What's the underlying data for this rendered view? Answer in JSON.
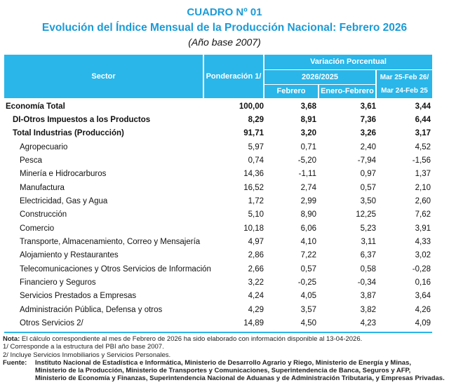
{
  "title": {
    "line1": "CUADRO Nº 01",
    "line2": "Evolución del Índice Mensual de la Producción Nacional: Febrero 2026",
    "line3": "(Año base 2007)"
  },
  "colors": {
    "header": "#2ab6e9",
    "title": "#1b9bd7"
  },
  "header": {
    "sector": "Sector",
    "ponderacion": "Ponderación 1/",
    "variacion": "Variación Porcentual",
    "periodo": "2026/2025",
    "anual_1": "Mar 25-Feb 26/",
    "anual_2": "Mar 24-Feb 25",
    "febrero": "Febrero",
    "enero_febrero": "Enero-Febrero"
  },
  "rows": [
    {
      "sector": "Economía Total",
      "pond": "100,00",
      "feb": "3,68",
      "enefeb": "3,61",
      "anual": "3,44"
    },
    {
      "sector": "DI-Otros Impuestos a los Productos",
      "pond": "8,29",
      "feb": "8,91",
      "enefeb": "7,36",
      "anual": "6,44"
    },
    {
      "sector": "Total  Industrias (Producción)",
      "pond": "91,71",
      "feb": "3,20",
      "enefeb": "3,26",
      "anual": "3,17"
    },
    {
      "sector": "Agropecuario",
      "pond": "5,97",
      "feb": "0,71",
      "enefeb": "2,40",
      "anual": "4,52"
    },
    {
      "sector": "Pesca",
      "pond": "0,74",
      "feb": "-5,20",
      "enefeb": "-7,94",
      "anual": "-1,56"
    },
    {
      "sector": "Minería e Hidrocarburos",
      "pond": "14,36",
      "feb": "-1,11",
      "enefeb": "0,97",
      "anual": "1,37"
    },
    {
      "sector": "Manufactura",
      "pond": "16,52",
      "feb": "2,74",
      "enefeb": "0,57",
      "anual": "2,10"
    },
    {
      "sector": "Electricidad, Gas y Agua",
      "pond": "1,72",
      "feb": "2,99",
      "enefeb": "3,50",
      "anual": "2,60"
    },
    {
      "sector": "Construcción",
      "pond": "5,10",
      "feb": "8,90",
      "enefeb": "12,25",
      "anual": "7,62"
    },
    {
      "sector": "Comercio",
      "pond": "10,18",
      "feb": "6,06",
      "enefeb": "5,23",
      "anual": "3,91"
    },
    {
      "sector": "Transporte, Almacenamiento, Correo y Mensajería",
      "pond": "4,97",
      "feb": "4,10",
      "enefeb": "3,11",
      "anual": "4,33"
    },
    {
      "sector": "Alojamiento y Restaurantes",
      "pond": "2,86",
      "feb": "7,22",
      "enefeb": "6,37",
      "anual": "3,02"
    },
    {
      "sector": "Telecomunicaciones y Otros Servicios de Información",
      "pond": "2,66",
      "feb": "0,57",
      "enefeb": "0,58",
      "anual": "-0,28"
    },
    {
      "sector": "Financiero y Seguros",
      "pond": "3,22",
      "feb": "-0,25",
      "enefeb": "-0,34",
      "anual": "0,16"
    },
    {
      "sector": "Servicios Prestados a Empresas",
      "pond": "4,24",
      "feb": "4,05",
      "enefeb": "3,87",
      "anual": "3,64"
    },
    {
      "sector": "Administración Pública, Defensa y otros",
      "pond": "4,29",
      "feb": "3,57",
      "enefeb": "3,82",
      "anual": "4,26"
    },
    {
      "sector": "Otros Servicios 2/",
      "pond": "14,89",
      "feb": "4,50",
      "enefeb": "4,23",
      "anual": "4,09"
    }
  ],
  "notes": {
    "nota_label": "Nota:",
    "nota": " El cálculo correspondiente al mes de Febrero de 2026 ha sido elaborado con información disponible al 13-04-2026.",
    "n1": "1/ Corresponde a la estructura del PBI año base 2007.",
    "n2": "2/ Incluye Servicios Inmobiliarios y Servicios Personales.",
    "fuente_label": "Fuente:",
    "fuente1": "Instituto Nacional de Estadística e Informática, Ministerio de Desarrollo Agrario y Riego, Ministerio de Energía y Minas,",
    "fuente2": "Ministerio de la Producción, Ministerio de Transportes y Comunicaciones, Superintendencia de Banca, Seguros y AFP,",
    "fuente3": "Ministerio de Economía y Finanzas, Superintendencia Nacional de Aduanas y de Administración Tributaria, y Empresas Privadas."
  }
}
